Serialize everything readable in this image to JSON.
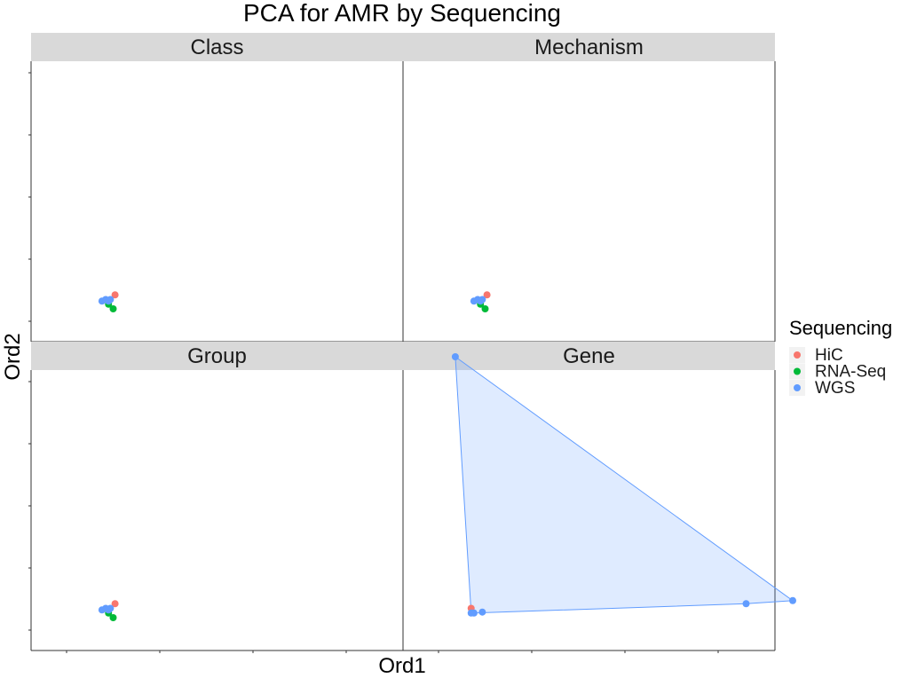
{
  "chart_data": {
    "type": "scatter",
    "title": "PCA for AMR by Sequencing",
    "xlabel": "Ord1",
    "ylabel": "Ord2",
    "xlim": [
      0,
      8
    ],
    "ylim": [
      0,
      9
    ],
    "facets": [
      {
        "label": "Class",
        "points": [
          {
            "series": "HiC",
            "x": 0.52,
            "y": 0.85
          },
          {
            "series": "RNA-Seq",
            "x": 0.45,
            "y": 0.55
          },
          {
            "series": "RNA-Seq",
            "x": 0.5,
            "y": 0.4
          },
          {
            "series": "WGS",
            "x": 0.38,
            "y": 0.65
          },
          {
            "series": "WGS",
            "x": 0.42,
            "y": 0.7
          },
          {
            "series": "WGS",
            "x": 0.45,
            "y": 0.65
          },
          {
            "series": "WGS",
            "x": 0.47,
            "y": 0.7
          }
        ]
      },
      {
        "label": "Mechanism",
        "points": [
          {
            "series": "HiC",
            "x": 0.52,
            "y": 0.85
          },
          {
            "series": "RNA-Seq",
            "x": 0.45,
            "y": 0.55
          },
          {
            "series": "RNA-Seq",
            "x": 0.5,
            "y": 0.4
          },
          {
            "series": "WGS",
            "x": 0.38,
            "y": 0.65
          },
          {
            "series": "WGS",
            "x": 0.42,
            "y": 0.7
          },
          {
            "series": "WGS",
            "x": 0.45,
            "y": 0.65
          },
          {
            "series": "WGS",
            "x": 0.47,
            "y": 0.7
          }
        ]
      },
      {
        "label": "Group",
        "points": [
          {
            "series": "HiC",
            "x": 0.52,
            "y": 0.85
          },
          {
            "series": "RNA-Seq",
            "x": 0.45,
            "y": 0.55
          },
          {
            "series": "RNA-Seq",
            "x": 0.5,
            "y": 0.4
          },
          {
            "series": "WGS",
            "x": 0.38,
            "y": 0.65
          },
          {
            "series": "WGS",
            "x": 0.42,
            "y": 0.7
          },
          {
            "series": "WGS",
            "x": 0.45,
            "y": 0.65
          },
          {
            "series": "WGS",
            "x": 0.47,
            "y": 0.7
          }
        ]
      },
      {
        "label": "Gene",
        "hull": true,
        "points": [
          {
            "series": "HiC",
            "x": 0.35,
            "y": 0.7
          },
          {
            "series": "WGS",
            "x": 0.18,
            "y": 8.8
          },
          {
            "series": "WGS",
            "x": 0.35,
            "y": 0.55
          },
          {
            "series": "WGS",
            "x": 0.38,
            "y": 0.55
          },
          {
            "series": "WGS",
            "x": 0.47,
            "y": 0.58
          },
          {
            "series": "WGS",
            "x": 3.3,
            "y": 0.85
          },
          {
            "series": "WGS",
            "x": 3.8,
            "y": 0.95
          }
        ]
      }
    ],
    "legend": {
      "title": "Sequencing",
      "position": "right",
      "entries": [
        {
          "name": "HiC",
          "color": "#F8766D"
        },
        {
          "name": "RNA-Seq",
          "color": "#00BA38"
        },
        {
          "name": "WGS",
          "color": "#619CFF"
        }
      ]
    },
    "grid": false
  }
}
